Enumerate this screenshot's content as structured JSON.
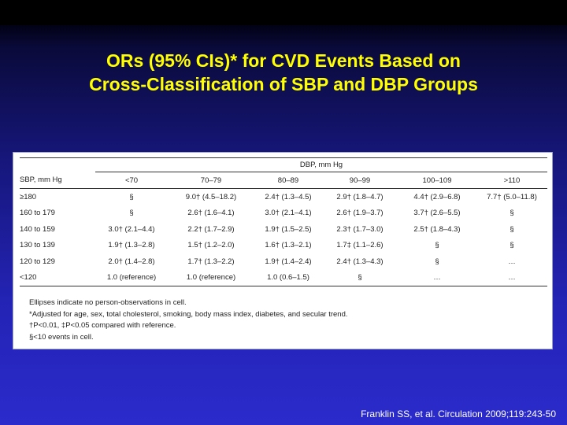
{
  "slide": {
    "title_line1": "ORs (95% CIs)* for CVD Events Based on",
    "title_line2": "Cross-Classification of SBP and DBP Groups",
    "citation": "Franklin SS, et al. Circulation 2009;119:243-50",
    "colors": {
      "title": "#ffff00",
      "background": "#2323b4",
      "citation": "#ffffff"
    }
  },
  "table": {
    "group_header": "DBP, mm Hg",
    "row_header": "SBP, mm Hg",
    "columns": [
      "<70",
      "70–79",
      "80–89",
      "90–99",
      "100–109",
      ">110"
    ],
    "rows": [
      {
        "label": "≥180",
        "cells": [
          "§",
          "9.0† (4.5–18.2)",
          "2.4† (1.3–4.5)",
          "2.9† (1.8–4.7)",
          "4.4† (2.9–6.8)",
          "7.7† (5.0–11.8)"
        ]
      },
      {
        "label": "160 to 179",
        "cells": [
          "§",
          "2.6† (1.6–4.1)",
          "3.0† (2.1–4.1)",
          "2.6† (1.9–3.7)",
          "3.7† (2.6–5.5)",
          "§"
        ]
      },
      {
        "label": "140 to 159",
        "cells": [
          "3.0† (2.1–4.4)",
          "2.2† (1.7–2.9)",
          "1.9† (1.5–2.5)",
          "2.3† (1.7–3.0)",
          "2.5† (1.8–4.3)",
          "§"
        ]
      },
      {
        "label": "130 to 139",
        "cells": [
          "1.9† (1.3–2.8)",
          "1.5† (1.2–2.0)",
          "1.6† (1.3–2.1)",
          "1.7‡ (1.1–2.6)",
          "§",
          "§"
        ]
      },
      {
        "label": "120 to 129",
        "cells": [
          "2.0† (1.4–2.8)",
          "1.7† (1.3–2.2)",
          "1.9† (1.4–2.4)",
          "2.4† (1.3–4.3)",
          "§",
          "…"
        ]
      },
      {
        "label": "<120",
        "cells": [
          "1.0 (reference)",
          "1.0 (reference)",
          "1.0 (0.6–1.5)",
          "§",
          "…",
          "…"
        ]
      }
    ],
    "notes": [
      "Ellipses indicate no person-observations in cell.",
      "*Adjusted for age, sex, total cholesterol, smoking, body mass index, diabetes, and secular trend.",
      "†P<0.01, ‡P<0.05 compared with reference.",
      "§<10 events in cell."
    ]
  }
}
